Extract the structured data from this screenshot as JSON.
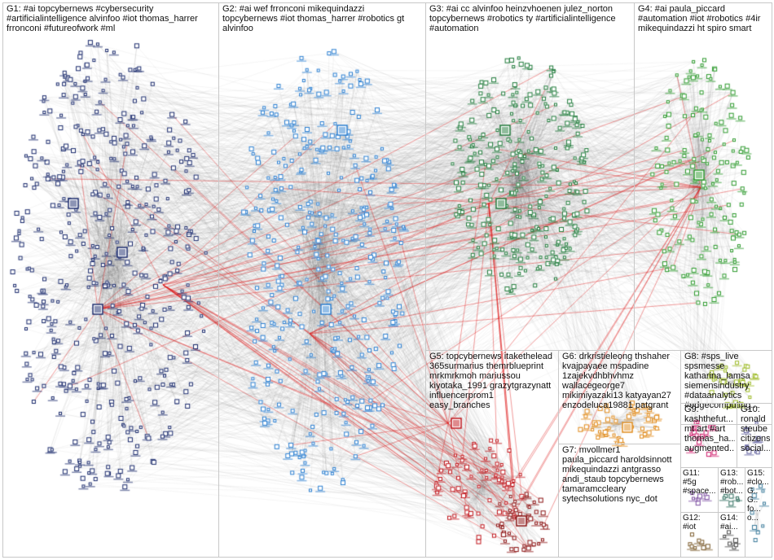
{
  "groups": [
    {
      "id": "G1",
      "label": "G1: #ai topcybernews #cybersecurity\n#artificialintelligence alvinfoo #iot thomas_harrer\nfrronconi #futureofwork #ml",
      "color": "#1a2a6c"
    },
    {
      "id": "G2",
      "label": "G2: #ai wef frronconi mikequindazzi\ntopcybernews #iot thomas_harrer #robotics gt\nalvinfoo",
      "color": "#2b7fd1"
    },
    {
      "id": "G3",
      "label": "G3: #ai cc alvinfoo heinzvhoenen julez_norton\ntopcybernews #robotics ty #artificialintelligence\n#automation",
      "color": "#1f7a3a"
    },
    {
      "id": "G4",
      "label": "G4: #ai paula_piccard\n#automation #iot #robotics #4ir\nmikequindazzi ht spiro smart",
      "color": "#2e9a2e"
    },
    {
      "id": "G5",
      "label": "G5: topcybernews itakethelead\n365surmarius themrblueprint\nmrkmrkmoh mariussou\nkiyotaka_1991 grazytgrazynatt\ninfluencerprom1\neasy_branches",
      "color": "#c0161c"
    },
    {
      "id": "G6",
      "label": "G6: drkristieleong thshaher\nkvajpayaee mspadine\n1zajekvdhbhvhmz\nwallacegeorge7\nmikimiyazaki13 katyayan27\nenzodeluca19881 patgrant",
      "color": "#e08a1a"
    },
    {
      "id": "G7",
      "label": "G7: mvollmer1\npaula_piccard haroldsinnott\nmikequindazzi antgrasso\nandi_staub topcybernews\ntamaramccleary\nsytechsolutions nyc_dot",
      "color": "#8a1010"
    },
    {
      "id": "G8",
      "label": "G8: #sps_live\nspsmesse\nkatharina_lamsa\nsiemensindustry\n#dataanalytics\n#edgecomputing...",
      "color": "#9ab820"
    },
    {
      "id": "G9",
      "label": "G9:\nkashthefut...\nmt art #art\nthomas_ha...\naugmented...",
      "color": "#d01a6a"
    },
    {
      "id": "G10",
      "label": "G10:\nronald\nsteube\ncitizens\nsocial...",
      "color": "#5a5a9a"
    },
    {
      "id": "G11",
      "label": "G11:\n#5g\n#space...",
      "color": "#7a4aa0"
    },
    {
      "id": "G12",
      "label": "G12:\n#iot",
      "color": "#7a5a2a"
    },
    {
      "id": "G13",
      "label": "G13:\n#rob...\n#bot...",
      "color": "#2a6a5a"
    },
    {
      "id": "G14",
      "label": "G14:\n#ai...",
      "color": "#4a4a4a"
    },
    {
      "id": "G15",
      "label": "G15:\n#clo...\nG.. G..\nfo... o...",
      "color": "#3a7a9a"
    }
  ]
}
